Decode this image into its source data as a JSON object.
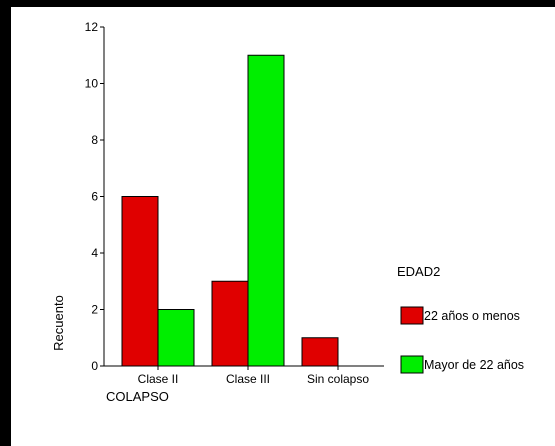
{
  "chart_data": {
    "type": "bar",
    "categories": [
      "Clase II",
      "Clase III",
      "Sin colapso"
    ],
    "series": [
      {
        "name": "22 años o menos",
        "values": [
          6,
          3,
          1
        ],
        "color": "#e00000"
      },
      {
        "name": "Mayor de 22 años",
        "values": [
          2,
          11,
          0
        ],
        "color": "#00ee00"
      }
    ],
    "ylim": [
      0,
      12
    ],
    "yticks": [
      0,
      2,
      4,
      6,
      8,
      10,
      12
    ],
    "xlabel": "COLAPSO",
    "ylabel": "Recuento",
    "legend_title": "EDAD2",
    "legend_position": "right",
    "grid": false
  },
  "colors": {
    "background": "#000000",
    "panel": "#ffffff"
  }
}
